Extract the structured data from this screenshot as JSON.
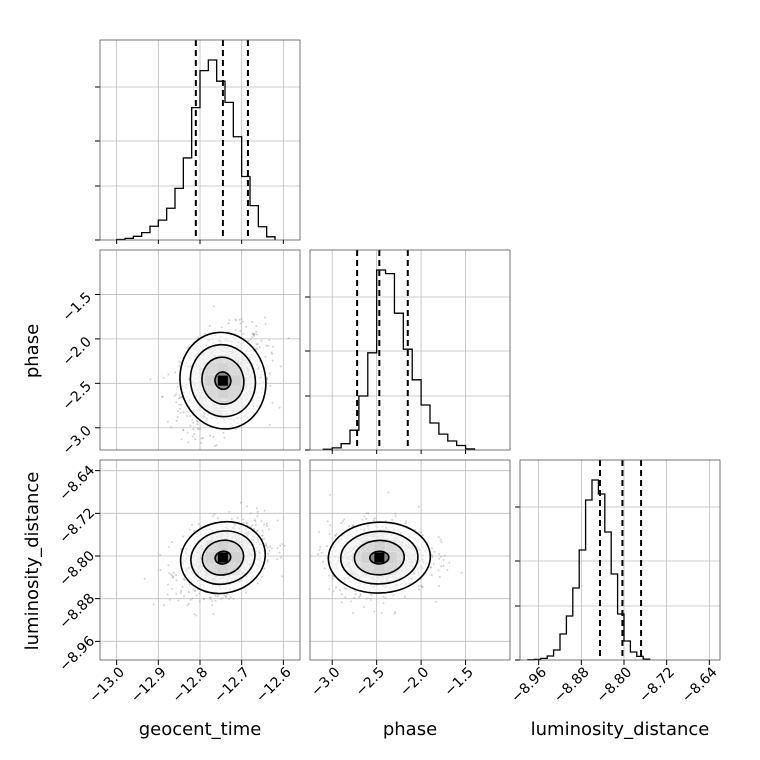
{
  "chart_data": {
    "type": "corner",
    "parameters": [
      "geocent_time",
      "phase",
      "luminosity_distance"
    ],
    "axis_labels": {
      "x": [
        "geocent_time",
        "phase",
        "luminosity_distance"
      ],
      "y": [
        "phase",
        "luminosity_distance"
      ]
    },
    "ranges": {
      "geocent_time": [
        -13.04,
        -12.56
      ],
      "phase": [
        -3.25,
        -1.0
      ],
      "luminosity_distance": [
        -8.995,
        -8.62
      ]
    },
    "ticks": {
      "geocent_time": {
        "values": [
          -13.0,
          -12.9,
          -12.8,
          -12.7,
          -12.6
        ],
        "labels": [
          "−13.0",
          "−12.9",
          "−12.8",
          "−12.7",
          "−12.6"
        ]
      },
      "phase": {
        "values": [
          -3.0,
          -2.5,
          -2.0,
          -1.5
        ],
        "labels": [
          "−3.0",
          "−2.5",
          "−2.0",
          "−1.5"
        ]
      },
      "luminosity_distance": {
        "values": [
          -8.96,
          -8.88,
          -8.8,
          -8.72,
          -8.64
        ],
        "labels": [
          "−8.96",
          "−8.88",
          "−8.80",
          "−8.72",
          "−8.64"
        ]
      }
    },
    "quantiles": {
      "geocent_time": [
        -12.81,
        -12.745,
        -12.685
      ],
      "phase": [
        -2.72,
        -2.47,
        -2.15
      ],
      "luminosity_distance": [
        -8.845,
        -8.803,
        -8.768
      ]
    },
    "histograms": {
      "geocent_time": {
        "edges_start": -13.0,
        "bin_width": 0.02,
        "counts": [
          2,
          6,
          14,
          28,
          52,
          75,
          120,
          195,
          310,
          500,
          640,
          680,
          600,
          520,
          390,
          240,
          130,
          50,
          12
        ]
      },
      "phase": {
        "edges_start": -3.1,
        "bin_width": 0.1,
        "counts": [
          4,
          12,
          35,
          110,
          300,
          540,
          1000,
          980,
          760,
          560,
          390,
          250,
          150,
          88,
          50,
          25,
          6
        ]
      },
      "luminosity_distance": {
        "edges_start": -8.98,
        "bin_width": 0.012,
        "counts": [
          1,
          3,
          8,
          20,
          50,
          130,
          220,
          360,
          550,
          800,
          900,
          830,
          640,
          430,
          230,
          95,
          40,
          18,
          4
        ]
      }
    },
    "pairs": [
      {
        "x": "geocent_time",
        "y": "phase",
        "centre": [
          -12.745,
          -2.47
        ],
        "spread": [
          0.05,
          0.28
        ],
        "correlation": 0.3
      },
      {
        "x": "geocent_time",
        "y": "luminosity_distance",
        "centre": [
          -12.745,
          -8.803
        ],
        "spread": [
          0.05,
          0.034
        ],
        "correlation": 0.35
      },
      {
        "x": "phase",
        "y": "luminosity_distance",
        "centre": [
          -2.47,
          -8.803
        ],
        "spread": [
          0.28,
          0.034
        ],
        "correlation": 0.05
      }
    ],
    "grid": true
  }
}
